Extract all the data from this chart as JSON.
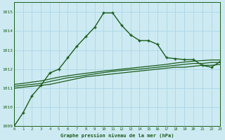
{
  "title": "Graphe pression niveau de la mer (hPa)",
  "bg_color": "#cdeaf2",
  "grid_color": "#b0d8e8",
  "line_color": "#1a5c1a",
  "xlim": [
    0,
    23
  ],
  "ylim": [
    1009,
    1015.5
  ],
  "yticks": [
    1009,
    1010,
    1011,
    1012,
    1013,
    1014,
    1015
  ],
  "xticks": [
    0,
    1,
    2,
    3,
    4,
    5,
    6,
    7,
    8,
    9,
    10,
    11,
    12,
    13,
    14,
    15,
    16,
    17,
    18,
    19,
    20,
    21,
    22,
    23
  ],
  "main_x": [
    0,
    1,
    2,
    3,
    4,
    5,
    6,
    7,
    8,
    9,
    10,
    11,
    12,
    13,
    14,
    15,
    16,
    17,
    18,
    19,
    20,
    21,
    22,
    23
  ],
  "main_y": [
    1009.0,
    1009.7,
    1010.6,
    1011.15,
    1011.8,
    1012.0,
    1012.6,
    1013.2,
    1013.7,
    1014.2,
    1014.95,
    1014.95,
    1014.3,
    1013.8,
    1013.5,
    1013.5,
    1013.3,
    1012.6,
    1012.55,
    1012.5,
    1012.5,
    1012.2,
    1012.1,
    1012.4
  ],
  "flat1_x": [
    0,
    1,
    2,
    3,
    4,
    5,
    6,
    7,
    8,
    9,
    10,
    11,
    12,
    13,
    14,
    15,
    16,
    17,
    18,
    19,
    20,
    21,
    22,
    23
  ],
  "flat1_y": [
    1011.0,
    1011.05,
    1011.1,
    1011.15,
    1011.2,
    1011.3,
    1011.4,
    1011.5,
    1011.6,
    1011.65,
    1011.7,
    1011.75,
    1011.8,
    1011.85,
    1011.9,
    1011.95,
    1012.0,
    1012.05,
    1012.1,
    1012.1,
    1012.15,
    1012.2,
    1012.2,
    1012.25
  ],
  "flat2_x": [
    0,
    1,
    2,
    3,
    4,
    5,
    6,
    7,
    8,
    9,
    10,
    11,
    12,
    13,
    14,
    15,
    16,
    17,
    18,
    19,
    20,
    21,
    22,
    23
  ],
  "flat2_y": [
    1011.1,
    1011.15,
    1011.2,
    1011.25,
    1011.35,
    1011.45,
    1011.55,
    1011.6,
    1011.68,
    1011.75,
    1011.82,
    1011.88,
    1011.93,
    1011.97,
    1012.0,
    1012.05,
    1012.1,
    1012.15,
    1012.2,
    1012.25,
    1012.3,
    1012.3,
    1012.35,
    1012.35
  ],
  "flat3_x": [
    0,
    1,
    2,
    3,
    4,
    5,
    6,
    7,
    8,
    9,
    10,
    11,
    12,
    13,
    14,
    15,
    16,
    17,
    18,
    19,
    20,
    21,
    22,
    23
  ],
  "flat3_y": [
    1011.2,
    1011.25,
    1011.32,
    1011.38,
    1011.48,
    1011.58,
    1011.65,
    1011.72,
    1011.78,
    1011.84,
    1011.9,
    1011.95,
    1012.0,
    1012.05,
    1012.1,
    1012.15,
    1012.2,
    1012.25,
    1012.32,
    1012.37,
    1012.42,
    1012.45,
    1012.48,
    1012.48
  ]
}
